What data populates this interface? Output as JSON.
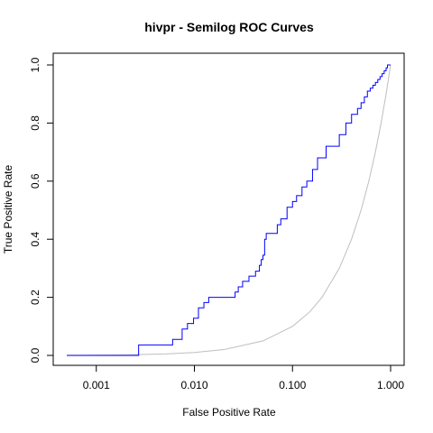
{
  "chart_data": {
    "type": "line",
    "title": "hivpr - Semilog ROC Curves",
    "xlabel": "False Positive Rate",
    "ylabel": "True Positive Rate",
    "xscale": "log",
    "xlim": [
      0.0005,
      1.0
    ],
    "ylim": [
      0,
      1
    ],
    "x_ticks": [
      0.001,
      0.01,
      0.1,
      1.0
    ],
    "x_tick_labels": [
      "0.001",
      "0.010",
      "0.100",
      "1.000"
    ],
    "y_ticks": [
      0,
      0.2,
      0.4,
      0.6,
      0.8,
      1.0
    ],
    "y_tick_labels": [
      "0.0",
      "0.2",
      "0.4",
      "0.6",
      "0.8",
      "1.0"
    ],
    "grid": false,
    "legend": "none",
    "colors": {
      "roc": "#0000ff",
      "random": "#bebebe",
      "frame": "#000000"
    },
    "series": [
      {
        "style": "step",
        "color": "#0000ff",
        "x": [
          0.0005,
          0.0027,
          0.0027,
          0.006,
          0.006,
          0.0075,
          0.0075,
          0.0085,
          0.0085,
          0.0098,
          0.0098,
          0.011,
          0.011,
          0.0125,
          0.0125,
          0.014,
          0.014,
          0.026,
          0.026,
          0.028,
          0.028,
          0.031,
          0.031,
          0.036,
          0.036,
          0.042,
          0.042,
          0.046,
          0.046,
          0.048,
          0.048,
          0.05,
          0.05,
          0.052,
          0.052,
          0.054,
          0.054,
          0.07,
          0.07,
          0.076,
          0.076,
          0.088,
          0.088,
          0.1,
          0.1,
          0.11,
          0.11,
          0.125,
          0.125,
          0.14,
          0.14,
          0.16,
          0.16,
          0.18,
          0.18,
          0.22,
          0.22,
          0.3,
          0.3,
          0.35,
          0.35,
          0.4,
          0.4,
          0.46,
          0.46,
          0.5,
          0.5,
          0.54,
          0.54,
          0.58,
          0.58,
          0.62,
          0.62,
          0.66,
          0.66,
          0.7,
          0.7,
          0.74,
          0.74,
          0.78,
          0.78,
          0.82,
          0.82,
          0.86,
          0.86,
          0.9,
          0.9,
          0.93,
          0.93,
          0.96,
          0.96,
          1.0
        ],
        "y": [
          0.0,
          0.0,
          0.036,
          0.036,
          0.055,
          0.055,
          0.091,
          0.091,
          0.11,
          0.11,
          0.128,
          0.128,
          0.164,
          0.164,
          0.182,
          0.182,
          0.2,
          0.2,
          0.218,
          0.218,
          0.236,
          0.236,
          0.255,
          0.255,
          0.273,
          0.273,
          0.29,
          0.29,
          0.31,
          0.31,
          0.33,
          0.33,
          0.345,
          0.345,
          0.4,
          0.4,
          0.42,
          0.42,
          0.45,
          0.45,
          0.47,
          0.47,
          0.51,
          0.51,
          0.53,
          0.53,
          0.55,
          0.55,
          0.58,
          0.58,
          0.6,
          0.6,
          0.64,
          0.64,
          0.68,
          0.68,
          0.72,
          0.72,
          0.76,
          0.76,
          0.8,
          0.8,
          0.83,
          0.83,
          0.85,
          0.85,
          0.87,
          0.87,
          0.89,
          0.89,
          0.91,
          0.91,
          0.92,
          0.92,
          0.93,
          0.93,
          0.94,
          0.94,
          0.95,
          0.95,
          0.96,
          0.96,
          0.97,
          0.97,
          0.98,
          0.98,
          0.99,
          0.99,
          1.0,
          1.0,
          1.0,
          1.0
        ]
      },
      {
        "style": "line",
        "color": "#bebebe",
        "x": [
          0.0005,
          0.001,
          0.002,
          0.005,
          0.01,
          0.02,
          0.05,
          0.1,
          0.15,
          0.2,
          0.3,
          0.4,
          0.5,
          0.6,
          0.7,
          0.8,
          0.9,
          1.0
        ],
        "y": [
          0.0005,
          0.001,
          0.002,
          0.005,
          0.01,
          0.02,
          0.05,
          0.1,
          0.15,
          0.2,
          0.3,
          0.4,
          0.5,
          0.6,
          0.7,
          0.8,
          0.9,
          1.0
        ]
      }
    ]
  }
}
